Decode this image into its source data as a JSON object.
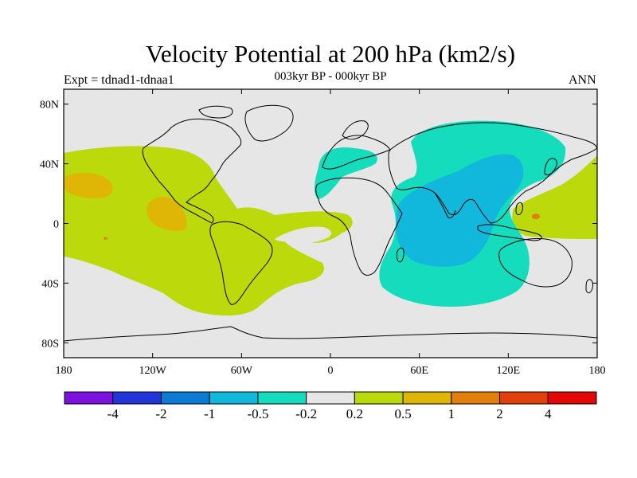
{
  "title": "Velocity Potential at 200 hPa (km2/s)",
  "subtitle": "003kyr BP - 000kyr BP",
  "experiment": "Expt = tdnad1-tdnaa1",
  "season": "ANN",
  "map": {
    "projection": "cylindrical-equidistant",
    "lon_range": [
      -180,
      180
    ],
    "lat_range": [
      -90,
      90
    ],
    "lat_ticks": [
      {
        "value": 80,
        "label": "80N"
      },
      {
        "value": 40,
        "label": "40N"
      },
      {
        "value": 0,
        "label": "0"
      },
      {
        "value": -40,
        "label": "40S"
      },
      {
        "value": -80,
        "label": "80S"
      }
    ],
    "lon_ticks": [
      {
        "value": -180,
        "label": "180"
      },
      {
        "value": -120,
        "label": "120W"
      },
      {
        "value": -60,
        "label": "60W"
      },
      {
        "value": 0,
        "label": "0"
      },
      {
        "value": 60,
        "label": "60E"
      },
      {
        "value": 120,
        "label": "120E"
      },
      {
        "value": 180,
        "label": "180"
      }
    ],
    "background_color": "#e6e6e6",
    "coastline_color": "#000000"
  },
  "colorbar": {
    "colors": [
      "#7d11df",
      "#2334d8",
      "#0d7ad6",
      "#12b7dc",
      "#14dcbc",
      "#e6e6e6",
      "#bbd90b",
      "#dfb506",
      "#e27f0a",
      "#e2400a",
      "#e30707"
    ],
    "labels": [
      "-4",
      "-2",
      "-1",
      "-0.5",
      "-0.2",
      "0.2",
      "0.5",
      "1",
      "2",
      "4"
    ]
  },
  "fields": {
    "positive_0.2_0.5": "#bbd90b",
    "positive_0.5_1": "#dfb506",
    "positive_1_2": "#e27f0a",
    "negative_-0.5_-0.2": "#14dcbc",
    "negative_-1_-0.5": "#12b7dc"
  }
}
